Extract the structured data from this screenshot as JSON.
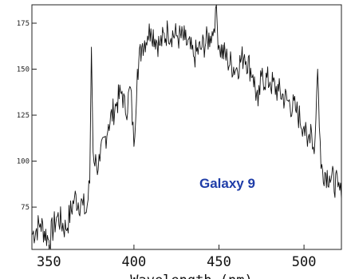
{
  "chart_data": {
    "type": "line",
    "title": "",
    "xlabel": "Wavelength (nm)",
    "ylabel": "",
    "xlim": [
      340,
      522
    ],
    "ylim": [
      52,
      185
    ],
    "x_ticks": [
      350,
      400,
      450,
      500
    ],
    "x_tick_labels": [
      "350",
      "400",
      "450",
      "500"
    ],
    "y_ticks": [
      75,
      100,
      125,
      150,
      175
    ],
    "y_tick_labels": [
      "75",
      "100",
      "125",
      "150",
      "175"
    ],
    "annotation": {
      "text": "Galaxy 9",
      "color": "#1f3da8"
    },
    "grid": false,
    "line_color": "#111111",
    "series": [
      {
        "name": "",
        "x": [
          340,
          345,
          350,
          355,
          360,
          365,
          370,
          372,
          374,
          375,
          376,
          378,
          380,
          385,
          390,
          393,
          395,
          398,
          400,
          402,
          405,
          408,
          410,
          415,
          420,
          425,
          430,
          435,
          440,
          445,
          447,
          448,
          450,
          455,
          460,
          465,
          470,
          473,
          475,
          480,
          485,
          490,
          495,
          500,
          502,
          504,
          506,
          508,
          510,
          515,
          520,
          522
        ],
        "y": [
          60,
          66,
          57,
          70,
          63,
          80,
          76,
          72,
          88,
          162,
          105,
          98,
          100,
          120,
          132,
          138,
          126,
          140,
          108,
          150,
          164,
          168,
          172,
          163,
          171,
          168,
          166,
          157,
          162,
          168,
          172,
          183,
          163,
          155,
          150,
          158,
          147,
          130,
          146,
          143,
          138,
          133,
          128,
          119,
          108,
          120,
          104,
          150,
          96,
          92,
          86,
          80
        ]
      }
    ]
  }
}
